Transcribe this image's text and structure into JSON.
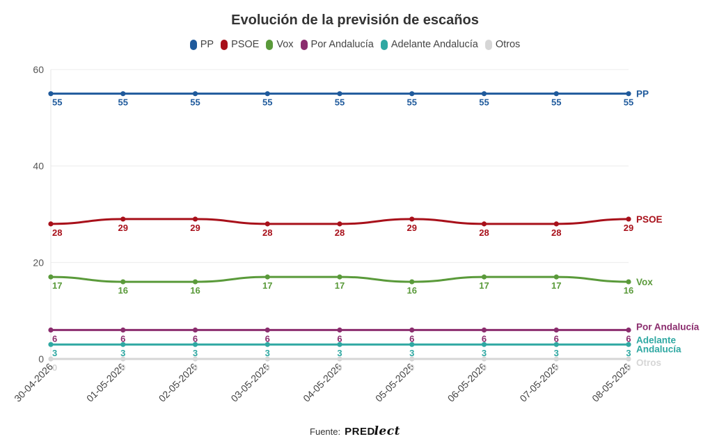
{
  "chart_data": {
    "type": "line",
    "title": "Evolución de la previsión de escaños",
    "categories": [
      "30-04-2026",
      "01-05-2026",
      "02-05-2026",
      "03-05-2026",
      "04-05-2026",
      "05-05-2026",
      "06-05-2026",
      "07-05-2026",
      "08-05-2026"
    ],
    "ylim": [
      0,
      60
    ],
    "yticks": [
      0,
      20,
      40,
      60
    ],
    "grid": true,
    "legend_position": "top",
    "series": [
      {
        "name": "PP",
        "color": "#1f5a9c",
        "values": [
          55,
          55,
          55,
          55,
          55,
          55,
          55,
          55,
          55
        ],
        "end_label": [
          "PP"
        ]
      },
      {
        "name": "PSOE",
        "color": "#a8101a",
        "values": [
          28,
          29,
          29,
          28,
          28,
          29,
          28,
          28,
          29
        ],
        "end_label": [
          "PSOE"
        ]
      },
      {
        "name": "Vox",
        "color": "#5a9a3a",
        "values": [
          17,
          16,
          16,
          17,
          17,
          16,
          17,
          17,
          16
        ],
        "end_label": [
          "Vox"
        ]
      },
      {
        "name": "Por Andalucía",
        "color": "#8b2d6e",
        "values": [
          6,
          6,
          6,
          6,
          6,
          6,
          6,
          6,
          6
        ],
        "end_label": [
          "Por Andalucía"
        ]
      },
      {
        "name": "Adelante Andalucía",
        "color": "#2fa8a2",
        "values": [
          3,
          3,
          3,
          3,
          3,
          3,
          3,
          3,
          3
        ],
        "end_label": [
          "Adelante",
          "Andalucía"
        ]
      },
      {
        "name": "Otros",
        "color": "#d6d6d6",
        "values": [
          0,
          0,
          0,
          0,
          0,
          0,
          0,
          0,
          0
        ],
        "end_label": [
          "Otros"
        ]
      }
    ]
  },
  "footer": {
    "source_label": "Fuente:",
    "brand_main": "PREDI",
    "brand_script": "lect"
  }
}
